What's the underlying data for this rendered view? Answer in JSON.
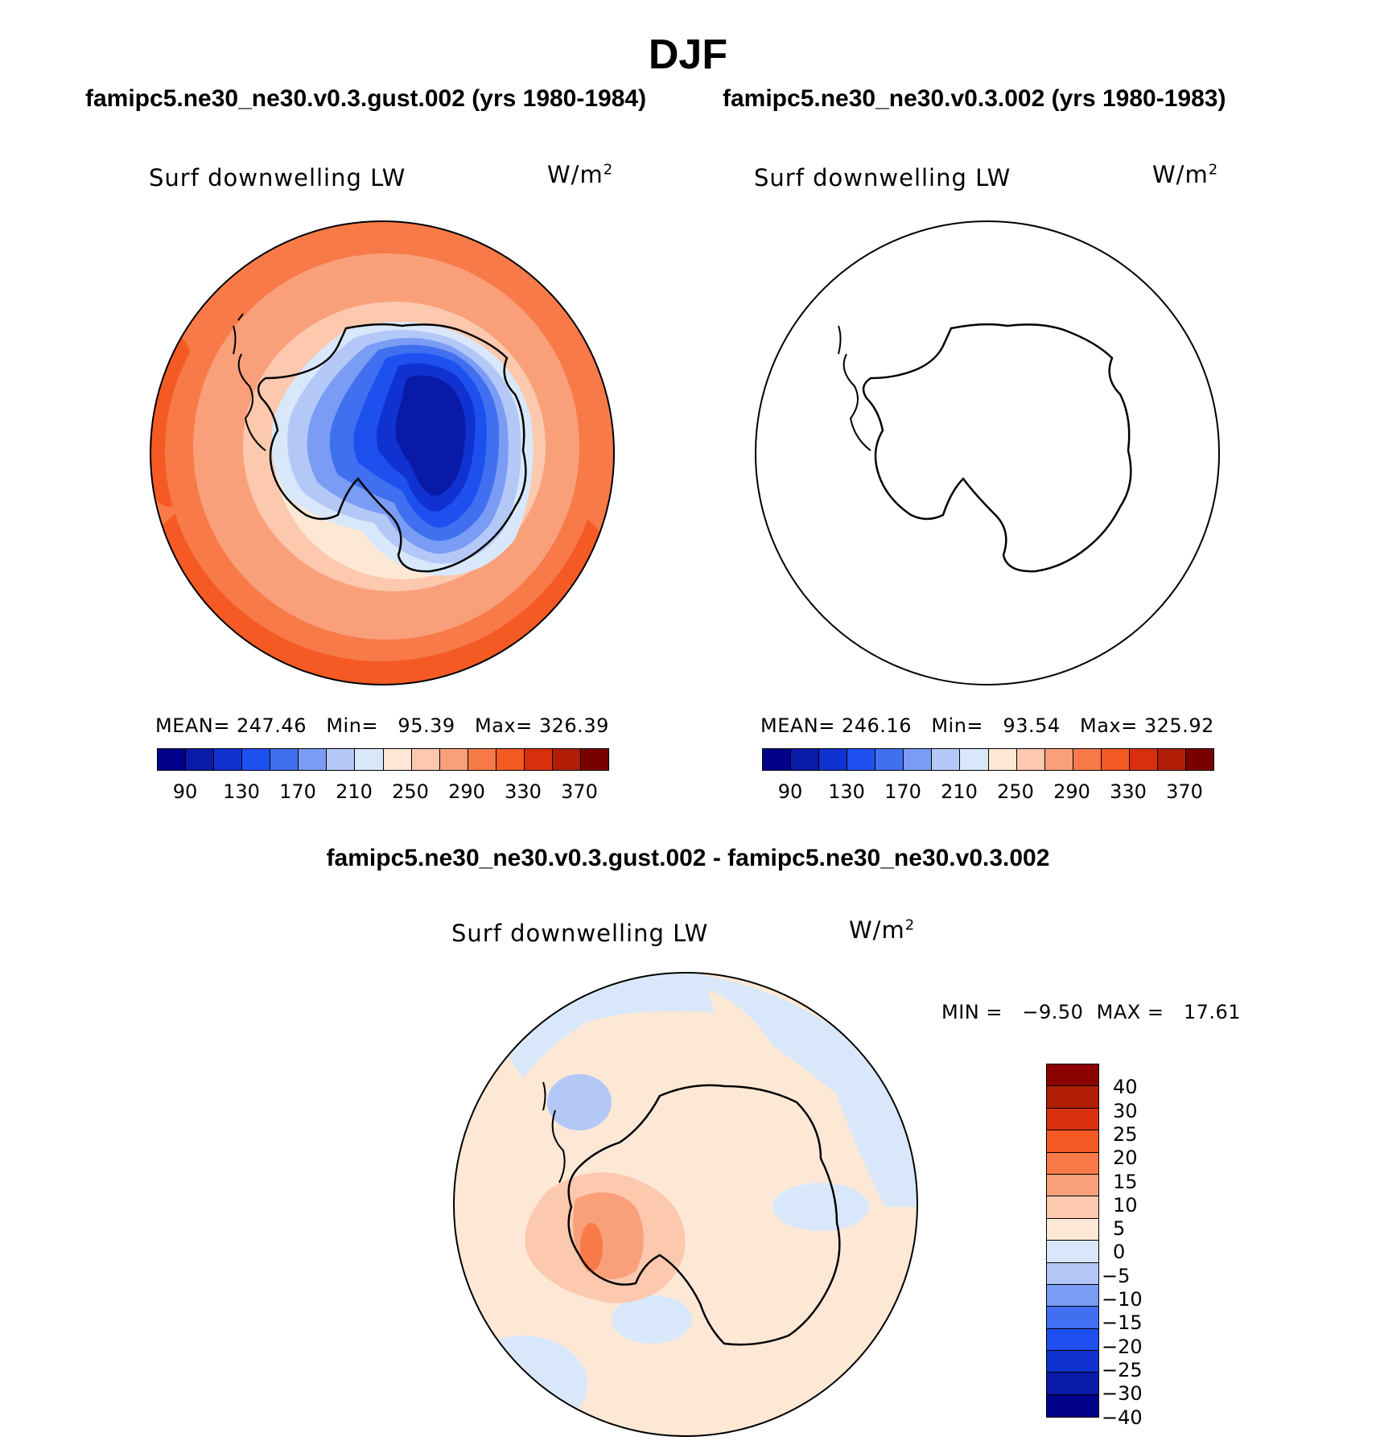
{
  "title": "DJF",
  "panels": [
    {
      "case_title": "famipc5.ne30_ne30.v0.3.gust.002 (yrs 1980-1984)",
      "variable": "Surf downwelling LW",
      "units": "W/m",
      "units_sup": "2",
      "stats_text": "MEAN= 247.46   Min=   95.39   Max= 326.39"
    },
    {
      "case_title": "famipc5.ne30_ne30.v0.3.002 (yrs 1980-1983)",
      "variable": "Surf downwelling LW",
      "units": "W/m",
      "units_sup": "2",
      "stats_text": "MEAN= 246.16   Min=   93.54   Max= 325.92"
    }
  ],
  "abs_colorbar": {
    "colors": [
      "#00008b",
      "#0a1aa8",
      "#1032d0",
      "#1e50f0",
      "#4070f0",
      "#7a9cf5",
      "#b4c8f8",
      "#d8e8fa",
      "#fde8d6",
      "#fcc8ae",
      "#f9a07a",
      "#f77a48",
      "#f55a24",
      "#d8300e",
      "#b01e08",
      "#7a0000"
    ],
    "ticks": [
      "90",
      "130",
      "170",
      "210",
      "250",
      "290",
      "330",
      "370"
    ]
  },
  "diff": {
    "title": "famipc5.ne30_ne30.v0.3.gust.002 - famipc5.ne30_ne30.v0.3.002",
    "variable": "Surf downwelling LW",
    "units": "W/m",
    "units_sup": "2",
    "stats_text": "MIN =   −9.50  MAX =   17.61",
    "colorbar": {
      "colors": [
        "#8b0000",
        "#b01e08",
        "#d8300e",
        "#f55a24",
        "#f77a48",
        "#f9a07a",
        "#fcc8ae",
        "#fde8d6",
        "#d8e8fa",
        "#b4c8f8",
        "#7a9cf5",
        "#4070f0",
        "#1e50f0",
        "#1032d0",
        "#0a1aa8",
        "#00008b"
      ],
      "ticks": [
        "40",
        "30",
        "25",
        "20",
        "15",
        "10",
        "5",
        "0",
        "−5",
        "−10",
        "−15",
        "−20",
        "−25",
        "−30",
        "−40"
      ]
    }
  }
}
